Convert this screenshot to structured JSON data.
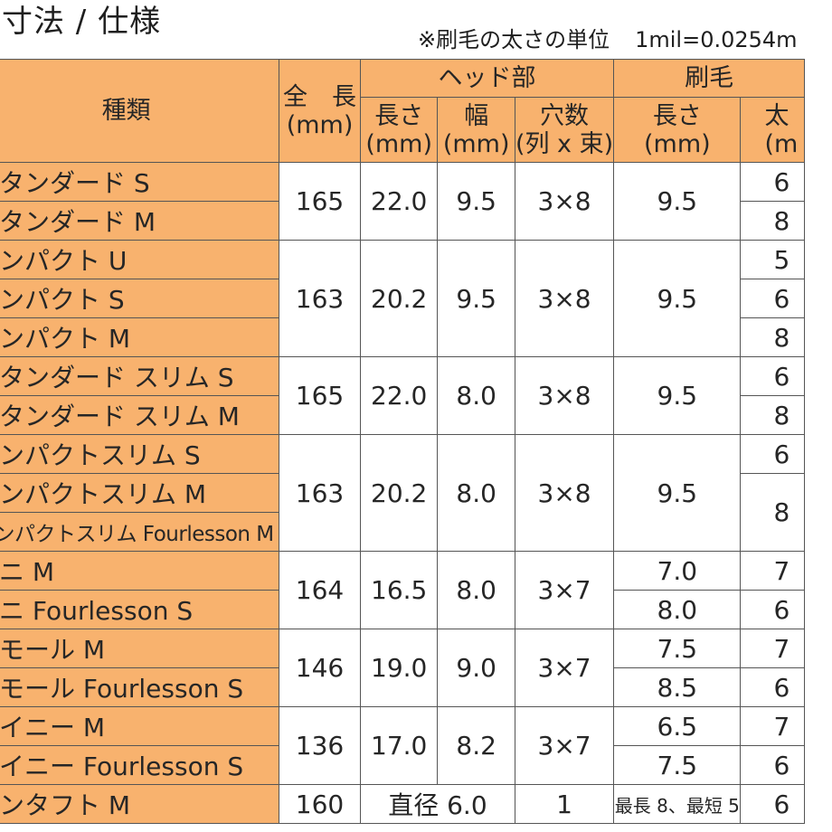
{
  "title": "寸法 / 仕様",
  "unit_note": {
    "left": "※刷毛の太さの単位",
    "right": "1mil=0.0254m"
  },
  "columns": {
    "type": "種類",
    "total_length": [
      "全　長",
      "(mm)"
    ],
    "head_group": "ヘッド部",
    "head_length": [
      "長さ",
      "(mm)"
    ],
    "head_width": [
      "幅",
      "(mm)"
    ],
    "holes": [
      "穴数",
      "(列 x 束)"
    ],
    "bristle_group": "刷毛",
    "bristle_length": [
      "長さ",
      "(mm)"
    ],
    "bristle_thickness": [
      "太",
      "(m"
    ]
  },
  "rows": [
    {
      "name": "スタンダード S",
      "thick": "6"
    },
    {
      "name": "スタンダード M",
      "thick": "8"
    },
    {
      "name": "コンパクト U",
      "thick": "5"
    },
    {
      "name": "コンパクト S",
      "thick": "6"
    },
    {
      "name": "コンパクト M",
      "thick": "8"
    },
    {
      "name": "スタンダード スリム S",
      "thick": "6"
    },
    {
      "name": "スタンダード スリム M",
      "thick": "8"
    },
    {
      "name": "コンパクトスリム S",
      "thick": "6"
    },
    {
      "name": "コンパクトスリム M",
      "thick": "8"
    },
    {
      "name": "コンパクトスリム Fourlesson M",
      "thick": ""
    },
    {
      "name": "ミニ M",
      "thick": "7"
    },
    {
      "name": "ミニ Fourlesson S",
      "thick": "6"
    },
    {
      "name": "スモール M",
      "thick": "7"
    },
    {
      "name": "スモール Fourlesson S",
      "thick": "6"
    },
    {
      "name": "タイニー M",
      "thick": "7"
    },
    {
      "name": "タイニー Fourlesson S",
      "thick": "6"
    },
    {
      "name": "ワンタフト M",
      "thick": "6"
    }
  ],
  "groups": [
    {
      "total": "165",
      "head_len": "22.0",
      "width": "9.5",
      "holes": "3×8",
      "bristle": [
        "9.5"
      ]
    },
    {
      "total": "163",
      "head_len": "20.2",
      "width": "9.5",
      "holes": "3×8",
      "bristle": [
        "9.5"
      ]
    },
    {
      "total": "165",
      "head_len": "22.0",
      "width": "8.0",
      "holes": "3×8",
      "bristle": [
        "9.5"
      ]
    },
    {
      "total": "163",
      "head_len": "20.2",
      "width": "8.0",
      "holes": "3×8",
      "bristle": [
        "9.5"
      ]
    },
    {
      "total": "164",
      "head_len": "16.5",
      "width": "8.0",
      "holes": "3×7",
      "bristle": [
        "7.0",
        "8.0"
      ]
    },
    {
      "total": "146",
      "head_len": "19.0",
      "width": "9.0",
      "holes": "3×7",
      "bristle": [
        "7.5",
        "8.5"
      ]
    },
    {
      "total": "136",
      "head_len": "17.0",
      "width": "8.2",
      "holes": "3×7",
      "bristle": [
        "6.5",
        "7.5"
      ]
    },
    {
      "total": "160",
      "head_combined": "直径 6.0",
      "holes": "1",
      "bristle": [
        "最長 8、最短 5"
      ]
    }
  ]
}
